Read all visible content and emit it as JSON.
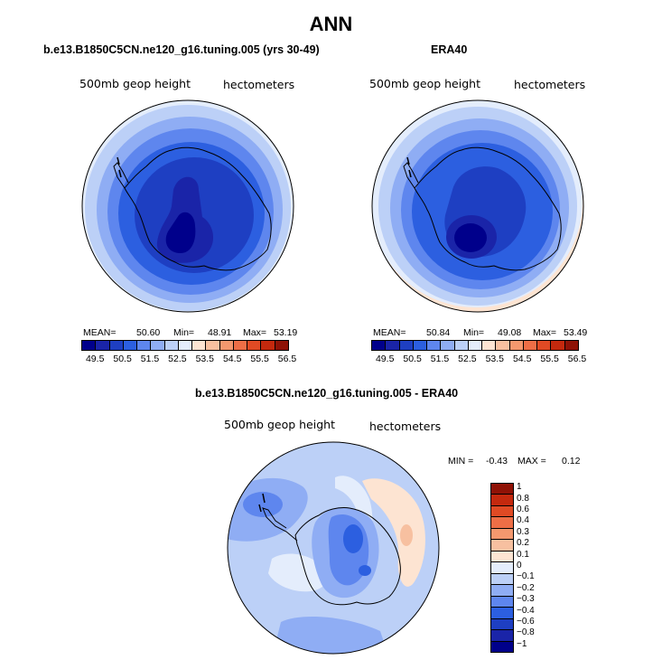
{
  "title": "ANN",
  "colors": {
    "levels": [
      "#00008b",
      "#1a24a8",
      "#1e3fc2",
      "#2c5fe0",
      "#5e86ee",
      "#8fadf4",
      "#bcd0f7",
      "#e4edfc",
      "#fde4d2",
      "#f7c0a0",
      "#f4986e",
      "#ee6e46",
      "#e04a24",
      "#c4290e",
      "#8f1206"
    ],
    "diff_levels": [
      "#8f1206",
      "#c4290e",
      "#e04a24",
      "#ee6e46",
      "#f4986e",
      "#f7c0a0",
      "#fde4d2",
      "#e4edfc",
      "#bcd0f7",
      "#8fadf4",
      "#5e86ee",
      "#2c5fe0",
      "#1e3fc2",
      "#1a24a8",
      "#00008b"
    ]
  },
  "panels": [
    {
      "title": "b.e13.B1850C5CN.ne120_g16.tuning.005 (yrs 30-49)",
      "left_label": "500mb geop height",
      "right_label": "hectometers",
      "mean_label": "MEAN=",
      "mean_value": "50.60",
      "min_label": "Min=",
      "min_value": "48.91",
      "max_label": "Max=",
      "max_value": "53.19",
      "ticks": [
        "49.5",
        "50.5",
        "51.5",
        "52.5",
        "53.5",
        "54.5",
        "55.5",
        "56.5"
      ]
    },
    {
      "title": "ERA40",
      "left_label": "500mb geop height",
      "right_label": "hectometers",
      "mean_label": "MEAN=",
      "mean_value": "50.84",
      "min_label": "Min=",
      "min_value": "49.08",
      "max_label": "Max=",
      "max_value": "53.49",
      "ticks": [
        "49.5",
        "50.5",
        "51.5",
        "52.5",
        "53.5",
        "54.5",
        "55.5",
        "56.5"
      ]
    }
  ],
  "diff": {
    "title": "b.e13.B1850C5CN.ne120_g16.tuning.005 - ERA40",
    "left_label": "500mb geop height",
    "right_label": "hectometers",
    "min_label": "MIN =",
    "min_value": "-0.43",
    "max_label": "MAX =",
    "max_value": "0.12",
    "ticks": [
      "1",
      "0.8",
      "0.6",
      "0.4",
      "0.3",
      "0.2",
      "0.1",
      "0",
      "−0.1",
      "−0.2",
      "−0.3",
      "−0.4",
      "−0.6",
      "−0.8",
      "−1"
    ]
  },
  "chart_data": [
    {
      "type": "heatmap",
      "title": "b.e13.B1850C5CN.ne120_g16.tuning.005 (yrs 30-49)",
      "variable": "500mb geop height",
      "units": "hectometers",
      "projection": "south polar stereographic",
      "levels": [
        49.5,
        50.5,
        51.5,
        52.5,
        53.5,
        54.5,
        55.5,
        56.5
      ],
      "stats": {
        "mean": 50.6,
        "min": 48.91,
        "max": 53.19
      }
    },
    {
      "type": "heatmap",
      "title": "ERA40",
      "variable": "500mb geop height",
      "units": "hectometers",
      "projection": "south polar stereographic",
      "levels": [
        49.5,
        50.5,
        51.5,
        52.5,
        53.5,
        54.5,
        55.5,
        56.5
      ],
      "stats": {
        "mean": 50.84,
        "min": 49.08,
        "max": 53.49
      }
    },
    {
      "type": "heatmap",
      "title": "b.e13.B1850C5CN.ne120_g16.tuning.005 - ERA40",
      "variable": "500mb geop height",
      "units": "hectometers",
      "projection": "south polar stereographic",
      "levels": [
        1,
        0.8,
        0.6,
        0.4,
        0.3,
        0.2,
        0.1,
        0,
        -0.1,
        -0.2,
        -0.3,
        -0.4,
        -0.6,
        -0.8,
        -1
      ],
      "stats": {
        "min": -0.43,
        "max": 0.12
      }
    }
  ]
}
